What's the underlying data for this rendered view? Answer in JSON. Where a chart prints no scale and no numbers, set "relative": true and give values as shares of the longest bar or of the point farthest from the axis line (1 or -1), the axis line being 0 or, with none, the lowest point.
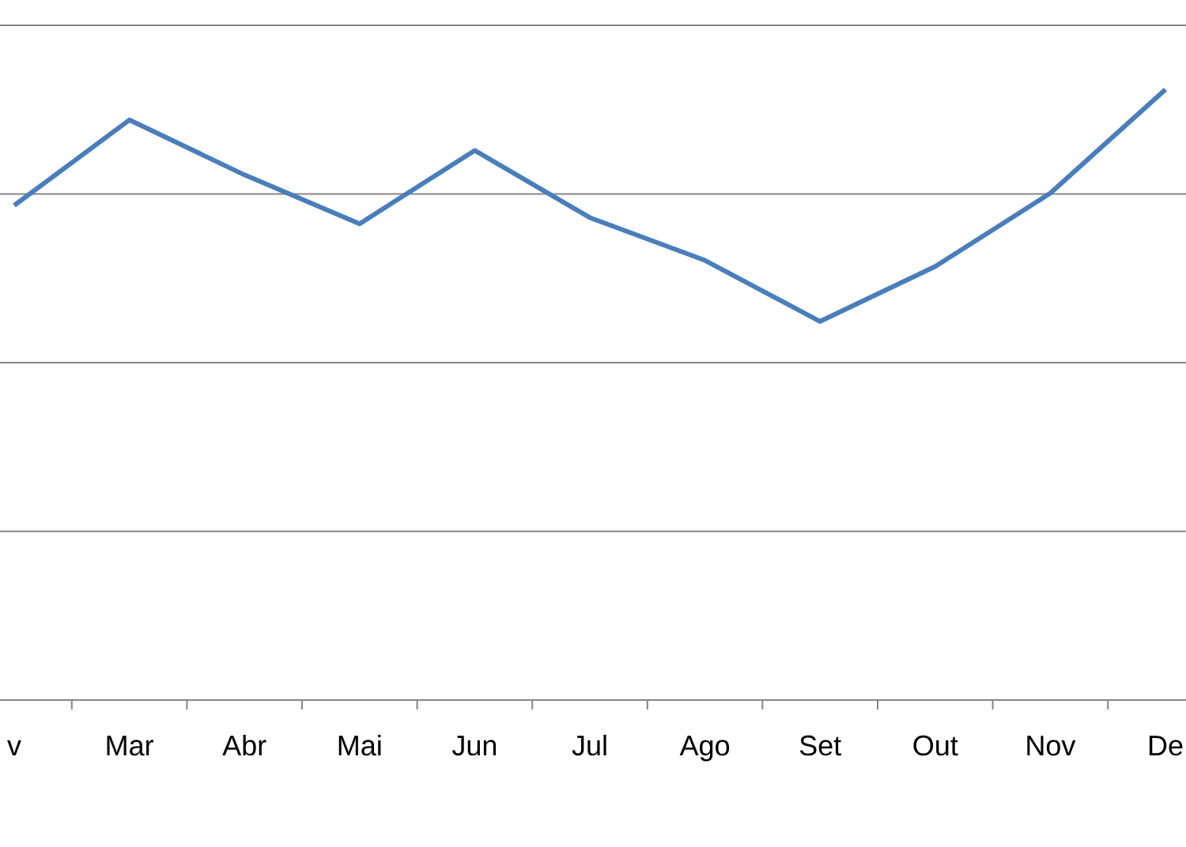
{
  "chart_data": {
    "type": "line",
    "categories": [
      "v",
      "Mar",
      "Abr",
      "Mai",
      "Jun",
      "Jul",
      "Ago",
      "Set",
      "Out",
      "Nov",
      "De"
    ],
    "values": [
      0.81,
      0.95,
      0.86,
      0.78,
      0.9,
      0.79,
      0.72,
      0.62,
      0.71,
      0.83,
      1
    ],
    "color": "#4a7ebb",
    "relative": true,
    "grid": "y"
  }
}
